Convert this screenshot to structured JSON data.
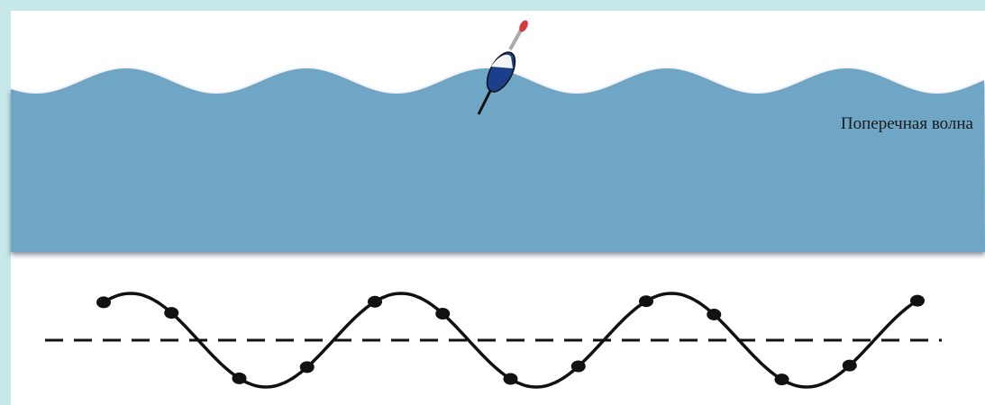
{
  "label": "Поперечная волна"
}
